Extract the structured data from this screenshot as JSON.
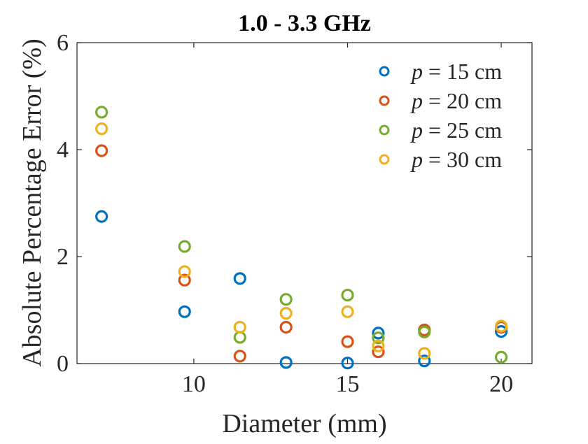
{
  "chart_data": {
    "type": "scatter",
    "title": "1.0 - 3.3 GHz",
    "xlabel": "Diameter (mm)",
    "ylabel": "Absolute Percentage Error (%)",
    "xlim": [
      6.2,
      21
    ],
    "ylim": [
      0,
      6
    ],
    "xticks": [
      10,
      15,
      20
    ],
    "yticks": [
      0,
      2,
      4,
      6
    ],
    "xtick_labels": [
      "10",
      "15",
      "20"
    ],
    "ytick_labels": [
      "0",
      "2",
      "4",
      "6"
    ],
    "legend_position": "top-right",
    "marker": "open-circle",
    "series": [
      {
        "name": "p = 15 cm",
        "legend_var": "p",
        "legend_rest": " = 15 cm",
        "color": "#0072BD",
        "x": [
          7,
          9.7,
          11.5,
          13,
          15,
          16,
          17.5,
          20
        ],
        "y": [
          2.75,
          0.97,
          1.59,
          0.02,
          0.01,
          0.57,
          0.05,
          0.6
        ]
      },
      {
        "name": "p = 20 cm",
        "legend_var": "p",
        "legend_rest": " = 20 cm",
        "color": "#D95319",
        "x": [
          7,
          9.7,
          11.5,
          13,
          15,
          16,
          17.5,
          20
        ],
        "y": [
          3.98,
          1.56,
          0.14,
          0.68,
          0.41,
          0.22,
          0.63,
          0.68
        ]
      },
      {
        "name": "p = 25 cm",
        "legend_var": "p",
        "legend_rest": " = 25 cm",
        "color": "#77AC30",
        "x": [
          7,
          9.7,
          11.5,
          13,
          15,
          16,
          17.5,
          20
        ],
        "y": [
          4.7,
          2.19,
          0.49,
          1.2,
          1.28,
          0.48,
          0.59,
          0.12
        ]
      },
      {
        "name": "p = 30 cm",
        "legend_var": "p",
        "legend_rest": " = 30 cm",
        "color": "#EDB120",
        "x": [
          7,
          9.7,
          11.5,
          13,
          15,
          16,
          17.5,
          20
        ],
        "y": [
          4.39,
          1.72,
          0.68,
          0.94,
          0.97,
          0.33,
          0.19,
          0.7
        ]
      }
    ]
  }
}
